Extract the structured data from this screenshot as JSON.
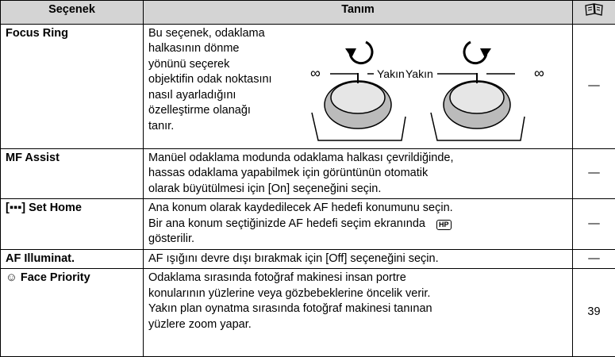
{
  "table": {
    "header": [
      "Seçenek",
      "Tanım"
    ],
    "rows": [
      {
        "option": "Focus Ring",
        "description": [
          "Bu seçenek, odaklama",
          "halkasının dönme",
          "yönünü seçerek",
          "objektifin odak noktasını",
          "nasıl ayarladığını",
          "özelleştirme olanağı",
          "tanır."
        ],
        "diagram_labels": [
          "∞",
          "Yakın",
          "Yakın",
          "∞"
        ],
        "ref": "—"
      },
      {
        "option": "MF Assist",
        "description": [
          "Manüel odaklama modunda odaklama halkası çevrildiğinde,",
          "hassas odaklama yapabilmek için görüntünün otomatik",
          "olarak büyütülmesi için [On] seçeneğini seçin."
        ],
        "ref": "—"
      },
      {
        "option": "[▪▪▪] Set Home",
        "description": [
          "Ana konum olarak kaydedilecek AF hedefi konumunu seçin.",
          "Bir ana konum seçtiğinizde AF hedefi seçim ekranında",
          "gösterilir."
        ],
        "icon": "HP",
        "ref": "—"
      },
      {
        "option": "AF Illuminat.",
        "description": [
          "AF ışığını devre dışı bırakmak için [Off] seçeneğini seçin."
        ],
        "ref": "—"
      },
      {
        "option": "☺ Face Priority",
        "description": [
          "Odaklama sırasında fotoğraf makinesi insan portre",
          "konularının yüzlerine veya gözbebeklerine öncelik verir.",
          "Yakın plan oynatma sırasında fotoğraf makinesi tanınan",
          "yüzlere zoom yapar."
        ],
        "ref": "39"
      }
    ]
  }
}
